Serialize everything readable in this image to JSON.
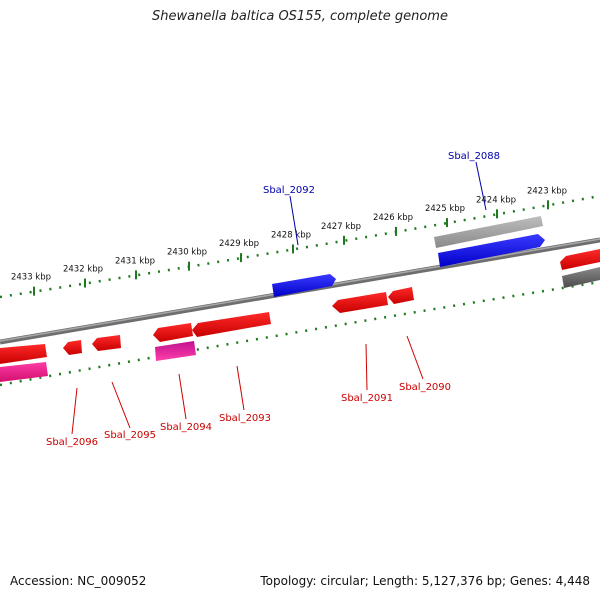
{
  "title": "Shewanella baltica OS155, complete genome",
  "footer": {
    "accession": "Accession: NC_009052",
    "summary": "Topology: circular; Length: 5,127,376 bp; Genes: 4,448"
  },
  "colors": {
    "backbone": "#7a7a7a",
    "ticks": "#1f7a1f",
    "forward_gene": "#1010e0",
    "reverse_gene": "#e01010",
    "pink_gene": "#e8208a",
    "gray_gene": "#a8a8a8",
    "forward_label": "#0000aa",
    "reverse_label": "#cc0000"
  },
  "ticks": [
    {
      "label": "2433 kbp"
    },
    {
      "label": "2432 kbp"
    },
    {
      "label": "2431 kbp"
    },
    {
      "label": "2430 kbp"
    },
    {
      "label": "2429 kbp"
    },
    {
      "label": "2428 kbp"
    },
    {
      "label": "2427 kbp"
    },
    {
      "label": "2426 kbp"
    },
    {
      "label": "2425 kbp"
    },
    {
      "label": "2424 kbp"
    },
    {
      "label": "2423 kbp"
    }
  ],
  "genes": [
    {
      "name": "Sbal_2088",
      "strand": "forward",
      "labeled": true
    },
    {
      "name": "Sbal_2090",
      "strand": "reverse",
      "labeled": true
    },
    {
      "name": "Sbal_2091",
      "strand": "reverse",
      "labeled": true
    },
    {
      "name": "Sbal_2092",
      "strand": "forward",
      "labeled": true
    },
    {
      "name": "Sbal_2093",
      "strand": "reverse",
      "labeled": true
    },
    {
      "name": "Sbal_2094",
      "strand": "reverse",
      "labeled": true
    },
    {
      "name": "Sbal_2095",
      "strand": "reverse",
      "labeled": true
    },
    {
      "name": "Sbal_2096",
      "strand": "reverse",
      "labeled": true
    }
  ]
}
